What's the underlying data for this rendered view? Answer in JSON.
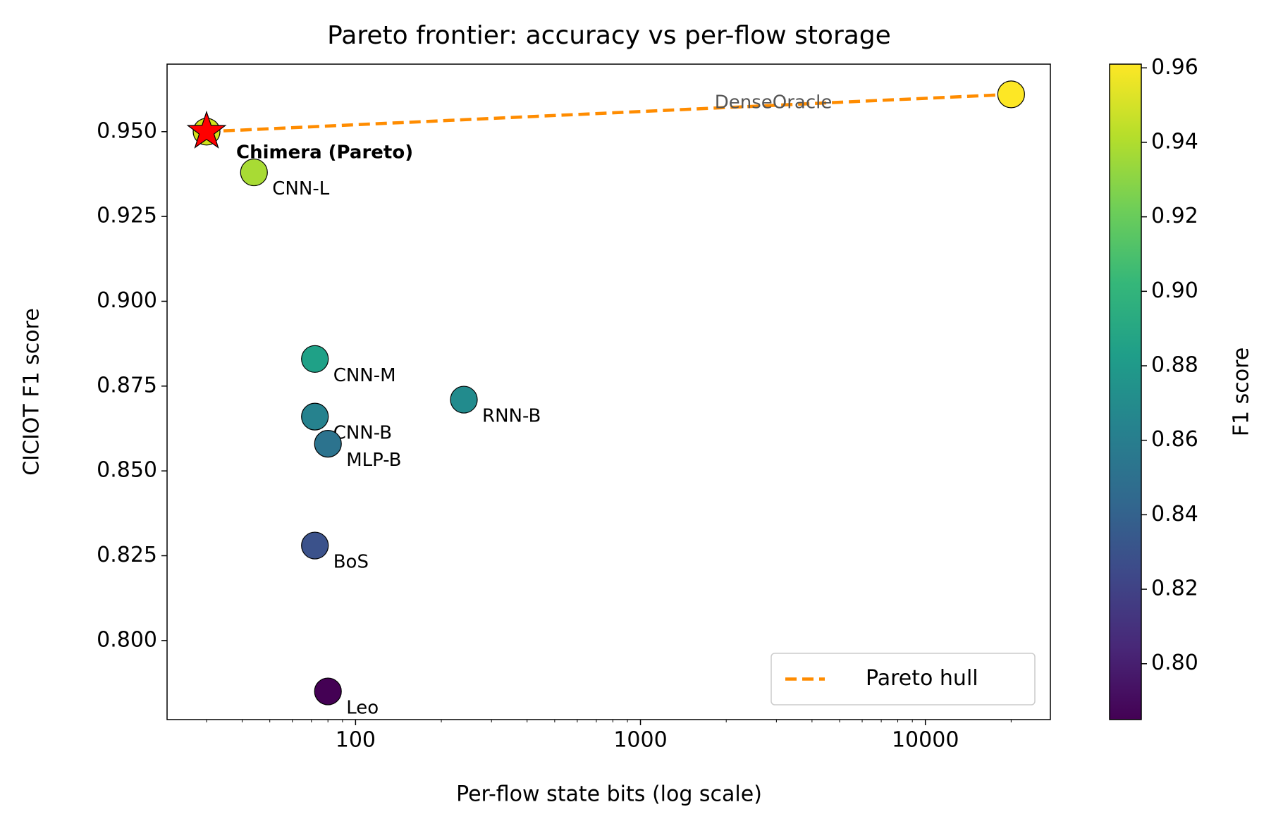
{
  "chart_data": {
    "type": "scatter",
    "title": "Pareto frontier: accuracy vs per-flow storage",
    "x_label": "Per-flow state bits (log scale)",
    "y_label": "CICIOT F1 score",
    "x_log_scale": true,
    "xlim": [
      21.8,
      27460
    ],
    "ylim": [
      0.7767,
      0.9699
    ],
    "xticks": [
      100,
      1000,
      10000
    ],
    "yticks": [
      {
        "value": 0.8,
        "label": "0.800"
      },
      {
        "value": 0.825,
        "label": "0.825"
      },
      {
        "value": 0.85,
        "label": "0.850"
      },
      {
        "value": 0.875,
        "label": "0.875"
      },
      {
        "value": 0.9,
        "label": "0.900"
      },
      {
        "value": 0.925,
        "label": "0.925"
      },
      {
        "value": 0.95,
        "label": "0.950"
      }
    ],
    "points": {
      "labels": [
        "Chimera (Pareto)",
        "CNN-L",
        "CNN-M",
        "CNN-B",
        "MLP-B",
        "RNN-B",
        "BoS",
        "Leo",
        "DenseOracle"
      ],
      "x": [
        30,
        44,
        72,
        72,
        80,
        240,
        72,
        80,
        20000
      ],
      "values": [
        0.95,
        0.938,
        0.883,
        0.866,
        0.858,
        0.871,
        0.828,
        0.785,
        0.961
      ],
      "colors": [
        "#d2e21b",
        "#a8db34",
        "#1fa187",
        "#26828e",
        "#2c738e",
        "#228b8d",
        "#3b528b",
        "#440154",
        "#fde725"
      ],
      "markers": [
        "star",
        "circle",
        "circle",
        "circle",
        "circle",
        "circle",
        "circle",
        "circle",
        "circle"
      ],
      "star_color": "#ff0000"
    },
    "series": [
      {
        "name": "Pareto hull",
        "color": "#ff8c00",
        "x": [
          30,
          20000
        ],
        "values": [
          0.95,
          0.961
        ]
      }
    ],
    "legend_position": "lower right",
    "colorbar": {
      "label": "F1 score",
      "lim": [
        0.785,
        0.961
      ],
      "ticks": [
        {
          "value": 0.8,
          "label": "0.80"
        },
        {
          "value": 0.82,
          "label": "0.82"
        },
        {
          "value": 0.84,
          "label": "0.84"
        },
        {
          "value": 0.86,
          "label": "0.86"
        },
        {
          "value": 0.88,
          "label": "0.88"
        },
        {
          "value": 0.9,
          "label": "0.90"
        },
        {
          "value": 0.92,
          "label": "0.92"
        },
        {
          "value": 0.94,
          "label": "0.94"
        },
        {
          "value": 0.96,
          "label": "0.96"
        }
      ],
      "colormap": [
        "#440154",
        "#482878",
        "#3e4989",
        "#31688e",
        "#26828e",
        "#1f9e89",
        "#35b779",
        "#6ece58",
        "#b5de2b",
        "#fde725"
      ]
    }
  }
}
